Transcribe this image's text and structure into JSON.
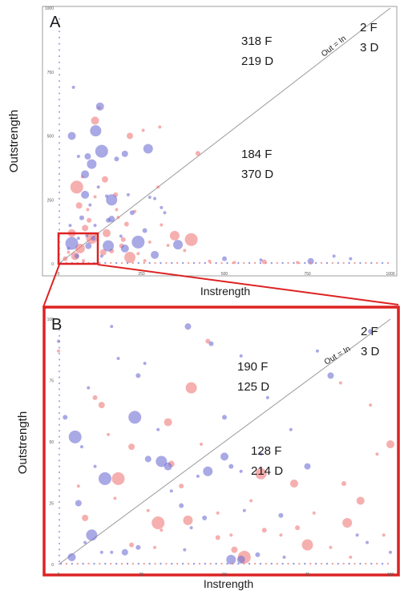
{
  "colors": {
    "female": "#f07a7a",
    "dominant": "#6f6fd4",
    "diagonal": "#9a9a9a",
    "highlight": "#dd2222",
    "axis": "#555555"
  },
  "chart_data": [
    {
      "panel": "A",
      "type": "scatter",
      "xlabel": "Instrength",
      "ylabel": "Outstrength",
      "xlim": [
        0,
        1000
      ],
      "ylim": [
        0,
        1000
      ],
      "xticks": [
        "0",
        "250",
        "500",
        "750",
        "1000"
      ],
      "yticks": [
        "0",
        "250",
        "500",
        "750",
        "1000"
      ],
      "diagonal_label": "Out = In",
      "annotations": [
        {
          "line1": "318 F",
          "line2": "219 D"
        },
        {
          "line1": "2 F",
          "line2": "3 D"
        },
        {
          "line1": "184 F",
          "line2": "370 D"
        }
      ],
      "series": [
        {
          "group": "F",
          "points": [
            [
              305,
              535
            ],
            [
              215,
              500
            ],
            [
              420,
              432
            ],
            [
              255,
              522
            ],
            [
              72,
              340
            ],
            [
              172,
              270
            ],
            [
              110,
              262
            ],
            [
              92,
              170
            ],
            [
              175,
              212
            ],
            [
              122,
              610
            ],
            [
              55,
              300
            ],
            [
              80,
              140
            ],
            [
              100,
              100
            ],
            [
              40,
              120
            ],
            [
              30,
              45
            ],
            [
              65,
              60
            ],
            [
              145,
              120
            ],
            [
              205,
              155
            ],
            [
              275,
              85
            ],
            [
              330,
              72
            ],
            [
              88,
              212
            ],
            [
              62,
              228
            ],
            [
              195,
              95
            ],
            [
              455,
              10
            ],
            [
              530,
              5
            ],
            [
              620,
              8
            ],
            [
              720,
              5
            ],
            [
              160,
              50
            ],
            [
              240,
              40
            ],
            [
              380,
              52
            ],
            [
              400,
              95
            ],
            [
              135,
              45
            ],
            [
              215,
              25
            ],
            [
              110,
              560
            ],
            [
              310,
              152
            ],
            [
              350,
              110
            ],
            [
              50,
              30
            ],
            [
              20,
              20
            ],
            [
              75,
              12
            ],
            [
              260,
              12
            ],
            [
              300,
              300
            ],
            [
              140,
              330
            ],
            [
              190,
              70
            ],
            [
              230,
              205
            ],
            [
              180,
              182
            ]
          ]
        },
        {
          "group": "D",
          "points": [
            [
              45,
              690
            ],
            [
              130,
              440
            ],
            [
              200,
              430
            ],
            [
              112,
              520
            ],
            [
              125,
              615
            ],
            [
              60,
              420
            ],
            [
              100,
              390
            ],
            [
              80,
              350
            ],
            [
              222,
              200
            ],
            [
              275,
              260
            ],
            [
              290,
              255
            ],
            [
              145,
              265
            ],
            [
              160,
              175
            ],
            [
              260,
              130
            ],
            [
              310,
              220
            ],
            [
              110,
              150
            ],
            [
              150,
              170
            ],
            [
              95,
              230
            ],
            [
              70,
              180
            ],
            [
              120,
              300
            ],
            [
              60,
              100
            ],
            [
              40,
              80
            ],
            [
              90,
              70
            ],
            [
              150,
              70
            ],
            [
              200,
              60
            ],
            [
              320,
              200
            ],
            [
              360,
              75
            ],
            [
              290,
              35
            ],
            [
              500,
              20
            ],
            [
              830,
              30
            ],
            [
              880,
              20
            ],
            [
              610,
              15
            ],
            [
              760,
              10
            ],
            [
              55,
              30
            ],
            [
              30,
              60
            ],
            [
              130,
              30
            ],
            [
              175,
              410
            ],
            [
              85,
              110
            ],
            [
              105,
              100
            ],
            [
              35,
              150
            ],
            [
              188,
              108
            ],
            [
              240,
              85
            ],
            [
              88,
              420
            ],
            [
              160,
              250
            ],
            [
              80,
              270
            ],
            [
              210,
              270
            ],
            [
              270,
              450
            ],
            [
              40,
              500
            ]
          ]
        }
      ]
    },
    {
      "panel": "B",
      "type": "scatter",
      "xlabel": "Instrength",
      "ylabel": "Outstrength",
      "xlim": [
        0,
        100
      ],
      "ylim": [
        0,
        100
      ],
      "xticks": [
        "0",
        "25",
        "50",
        "75",
        "100"
      ],
      "yticks": [
        "0",
        "25",
        "50",
        "75",
        "100"
      ],
      "diagonal_label": "Out = In",
      "annotations": [
        {
          "line1": "190 F",
          "line2": "125 D"
        },
        {
          "line1": "2 F",
          "line2": "3 D"
        },
        {
          "line1": "128 F",
          "line2": "214 D"
        }
      ],
      "series": [
        {
          "group": "F",
          "points": [
            [
              0,
              87
            ],
            [
              30,
              17
            ],
            [
              34,
              41
            ],
            [
              61,
              37
            ],
            [
              71,
              33
            ],
            [
              85,
              74
            ],
            [
              87,
              17
            ],
            [
              100,
              49
            ],
            [
              72,
              15
            ],
            [
              43,
              49
            ],
            [
              31,
              14
            ],
            [
              15,
              53
            ],
            [
              13,
              65
            ],
            [
              45,
              91
            ],
            [
              58,
              26
            ],
            [
              48,
              21
            ],
            [
              37,
              32
            ],
            [
              29,
              7
            ],
            [
              22,
              8
            ],
            [
              82,
              7
            ],
            [
              88,
              3
            ],
            [
              56,
              3
            ],
            [
              53,
              6
            ],
            [
              75,
              8
            ],
            [
              91,
              26
            ],
            [
              96,
              45
            ],
            [
              39,
              18
            ],
            [
              33,
              58
            ],
            [
              48,
              11
            ],
            [
              67,
              12
            ],
            [
              17,
              27
            ],
            [
              6,
              32
            ],
            [
              8,
              19
            ],
            [
              11,
              68
            ],
            [
              27,
              22
            ],
            [
              98,
              12
            ],
            [
              62,
              14
            ],
            [
              77,
              21
            ],
            [
              86,
              33
            ],
            [
              94,
              65
            ],
            [
              52,
              12
            ],
            [
              18,
              35
            ],
            [
              22,
              48
            ],
            [
              40,
              72
            ]
          ]
        },
        {
          "group": "D",
          "points": [
            [
              0,
              91
            ],
            [
              13,
              5
            ],
            [
              16,
              5
            ],
            [
              20,
              5
            ],
            [
              24,
              7
            ],
            [
              38,
              6
            ],
            [
              40,
              15
            ],
            [
              44,
              19
            ],
            [
              56,
              22
            ],
            [
              67,
              20
            ],
            [
              100,
              5
            ],
            [
              9,
              72
            ],
            [
              5,
              52
            ],
            [
              27,
              43
            ],
            [
              31,
              42
            ],
            [
              33,
              40
            ],
            [
              42,
              36
            ],
            [
              45,
              38
            ],
            [
              50,
              44
            ],
            [
              52,
              40
            ],
            [
              61,
              45
            ],
            [
              55,
              85
            ],
            [
              78,
              87
            ],
            [
              82,
              77
            ],
            [
              94,
              95
            ],
            [
              55,
              38
            ],
            [
              26,
              82
            ],
            [
              24,
              77
            ],
            [
              18,
              84
            ],
            [
              2,
              60
            ],
            [
              7,
              48
            ],
            [
              11,
              40
            ],
            [
              14,
              35
            ],
            [
              6,
              25
            ],
            [
              10,
              12
            ],
            [
              4,
              3
            ],
            [
              8,
              9
            ],
            [
              52,
              2
            ],
            [
              55,
              2
            ],
            [
              60,
              4
            ],
            [
              68,
              3
            ],
            [
              90,
              12
            ],
            [
              93,
              9
            ],
            [
              39,
              97
            ],
            [
              46,
              90
            ],
            [
              16,
              97
            ],
            [
              34,
              30
            ],
            [
              37,
              24
            ],
            [
              30,
              55
            ],
            [
              50,
              60
            ],
            [
              63,
              68
            ],
            [
              70,
              55
            ],
            [
              23,
              60
            ],
            [
              75,
              40
            ]
          ]
        }
      ]
    }
  ]
}
